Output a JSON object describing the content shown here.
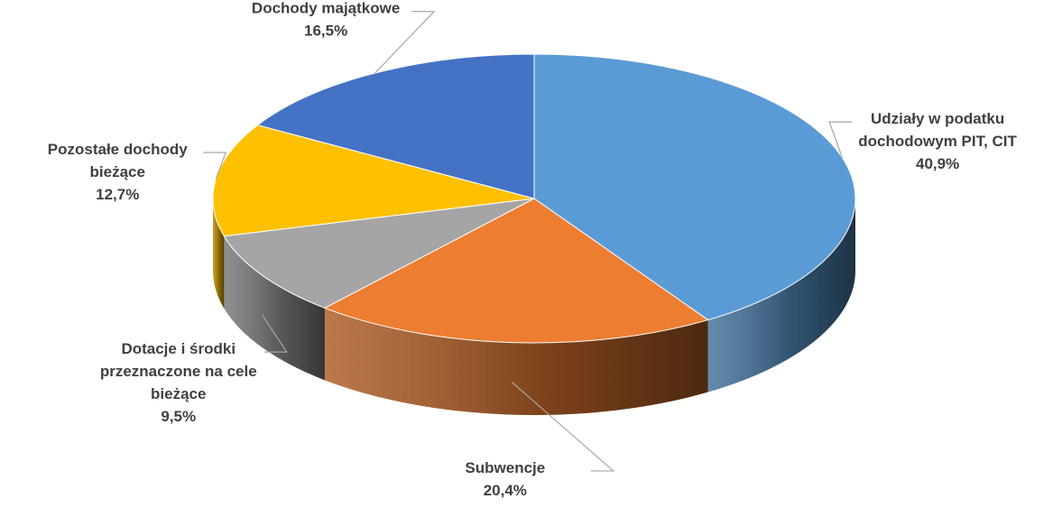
{
  "chart_data": {
    "type": "pie",
    "title": "",
    "slices": [
      {
        "label": "Udziały w podatku dochodowym PIT, CIT",
        "label_lines": [
          "Udziały w podatku",
          "dochodowym PIT, CIT"
        ],
        "value": 40.9,
        "value_label": "40,9%",
        "color": "#5b9bd5"
      },
      {
        "label": "Subwencje",
        "label_lines": [
          "Subwencje"
        ],
        "value": 20.4,
        "value_label": "20,4%",
        "color": "#ed7d31"
      },
      {
        "label": "Dotacje i środki przeznaczone na cele bieżące",
        "label_lines": [
          "Dotacje i środki",
          "przeznaczone na cele",
          "bieżące"
        ],
        "value": 9.5,
        "value_label": "9,5%",
        "color": "#a5a5a5"
      },
      {
        "label": "Pozostałe dochody bieżące",
        "label_lines": [
          "Pozostałe dochody",
          "bieżące"
        ],
        "value": 12.7,
        "value_label": "12,7%",
        "color": "#ffc000"
      },
      {
        "label": "Dochody majątkowe",
        "label_lines": [
          "Dochody majątkowe"
        ],
        "value": 16.5,
        "value_label": "16,5%",
        "color": "#4472c4"
      }
    ]
  }
}
